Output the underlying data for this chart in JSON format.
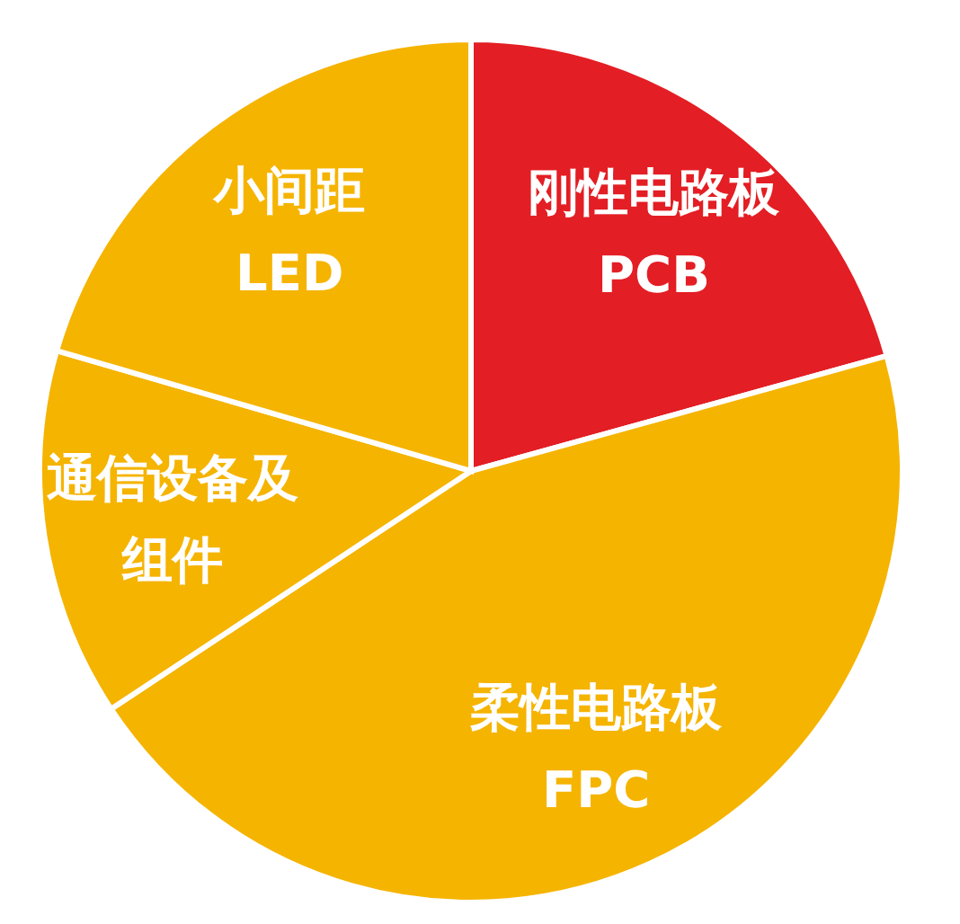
{
  "chart_data": {
    "type": "pie",
    "categories": [
      "刚性电路板 PCB",
      "柔性电路板 FPC",
      "通信设备及组件",
      "小间距 LED"
    ],
    "values": [
      20.7,
      45,
      13.8,
      20.5
    ],
    "colors": [
      "#e31e24",
      "#f5b400",
      "#f5b400",
      "#f5b400"
    ]
  }
}
